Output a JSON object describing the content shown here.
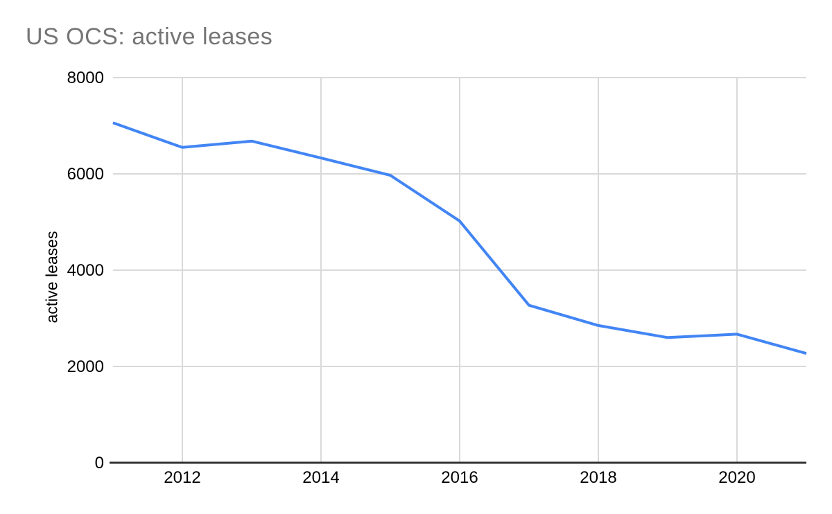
{
  "title": "US OCS: active leases",
  "colors": {
    "line": "#4285f4",
    "gridline": "#d9d9d9",
    "axis": "#333333",
    "title_text": "#757575",
    "tick_text": "#000000",
    "background": "#ffffff"
  },
  "chart_data": {
    "type": "line",
    "title": "US OCS: active leases",
    "xlabel": "",
    "ylabel": "active leases",
    "x": [
      2011,
      2012,
      2013,
      2014,
      2015,
      2016,
      2017,
      2018,
      2019,
      2020,
      2021
    ],
    "series": [
      {
        "name": "active leases",
        "values": [
          7060,
          6550,
          6680,
          6330,
          5970,
          5020,
          3270,
          2850,
          2600,
          2670,
          2270
        ]
      }
    ],
    "xlim": [
      2011,
      2021
    ],
    "ylim": [
      0,
      8000
    ],
    "y_ticks": [
      0,
      2000,
      4000,
      6000,
      8000
    ],
    "y_tick_labels": [
      "0",
      "2000",
      "4000",
      "6000",
      "8000"
    ],
    "x_tick_years": [
      2012,
      2014,
      2016,
      2018,
      2020
    ],
    "x_tick_labels": [
      "2012",
      "2014",
      "2016",
      "2018",
      "2020"
    ],
    "grid": true,
    "legend": "none"
  }
}
